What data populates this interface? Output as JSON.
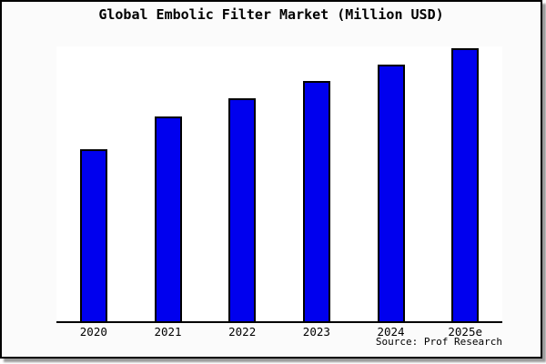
{
  "frame": {
    "background": "#fbfbfb",
    "border_color": "#000000",
    "shadow_color": "#9a9a9a"
  },
  "title": "Global Embolic Filter Market (Million USD)",
  "source_credit": "Source: Prof Research",
  "chart_data": {
    "type": "bar",
    "title": "Global Embolic Filter Market (Million USD)",
    "categories": [
      "2020",
      "2021",
      "2022",
      "2023",
      "2024",
      "2025e"
    ],
    "values": [
      63,
      75,
      81.5,
      88,
      94,
      100
    ],
    "value_note": "No y-axis or data labels shown in image; values are a relative index estimated from bar pixel heights with 2025e = 100",
    "xlabel": "",
    "ylabel": "",
    "ylim": [
      0,
      100.5
    ],
    "grid": false,
    "legend": false,
    "bar_fill": "#0000ee",
    "bar_border": "#000000",
    "plot_background": "#ffffff",
    "axis_color": "#000000",
    "source": "Source: Prof Research"
  }
}
